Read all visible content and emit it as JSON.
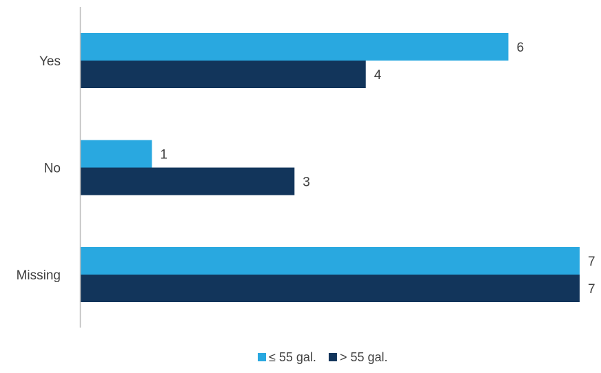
{
  "chart_data": {
    "type": "bar",
    "orientation": "horizontal",
    "categories": [
      "Yes",
      "No",
      "Missing"
    ],
    "series": [
      {
        "name": "≤ 55 gal.",
        "color": "#29A8E0",
        "values": [
          6,
          1,
          7
        ]
      },
      {
        "name": "> 55 gal.",
        "color": "#12355B",
        "values": [
          4,
          3,
          7
        ]
      }
    ],
    "title": "",
    "xlabel": "",
    "ylabel": "",
    "xlim": [
      0,
      7
    ],
    "grid": false,
    "legend_position": "bottom",
    "data_labels": true
  }
}
